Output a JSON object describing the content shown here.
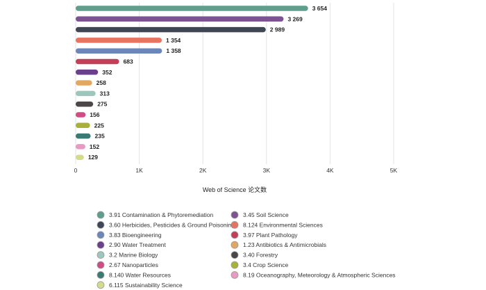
{
  "chart_data": {
    "type": "bar",
    "orientation": "horizontal",
    "xlabel": "Web of Science 论文数",
    "xlim": [
      0,
      5000
    ],
    "x_ticks": [
      0,
      1000,
      2000,
      3000,
      4000,
      5000
    ],
    "x_tick_labels": [
      "0",
      "1K",
      "2K",
      "3K",
      "4K",
      "5K"
    ],
    "grid": "vertical",
    "legend_position": "bottom",
    "categories": [
      "3.91 Contamination & Phytoremediation",
      "3.45 Soil Science",
      "3.60 Herbicides, Pesticides & Ground Poisoning",
      "8.124 Environmental Sciences",
      "3.83 Bioengineering",
      "3.97 Plant Pathology",
      "2.90 Water Treatment",
      "1.23 Antibiotics & Antimicrobials",
      "3.2 Marine Biology",
      "3.40 Forestry",
      "2.67 Nanoparticles",
      "3.4 Crop Science",
      "8.140 Water Resources",
      "8.19 Oceanography, Meteorology & Atmospheric Sciences",
      "6.115 Sustainability Science"
    ],
    "values": [
      3654,
      3269,
      2989,
      1354,
      1358,
      683,
      352,
      258,
      313,
      275,
      156,
      225,
      235,
      152,
      129
    ],
    "value_labels": [
      "3 654",
      "3 269",
      "2 989",
      "1 354",
      "1 358",
      "683",
      "352",
      "258",
      "313",
      "275",
      "156",
      "225",
      "235",
      "152",
      "129"
    ],
    "colors": [
      "#5e9e8c",
      "#7e5394",
      "#414654",
      "#e8735e",
      "#6b86ba",
      "#c33f58",
      "#6a3f8c",
      "#e3a75e",
      "#9dc7bd",
      "#4b4748",
      "#cf4d84",
      "#a8b13a",
      "#3a7a72",
      "#e89ac3",
      "#d3dc8a"
    ],
    "legend_left": [
      "3.91 Contamination & Phytoremediation",
      "3.60 Herbicides, Pesticides & Ground Poisoning",
      "3.83 Bioengineering",
      "2.90 Water Treatment",
      "3.2 Marine Biology",
      "2.67 Nanoparticles",
      "8.140 Water Resources",
      "6.115 Sustainability Science"
    ],
    "legend_right": [
      "3.45 Soil Science",
      "8.124 Environmental Sciences",
      "3.97 Plant Pathology",
      "1.23 Antibiotics & Antimicrobials",
      "3.40 Forestry",
      "3.4 Crop Science",
      "8.19 Oceanography, Meteorology & Atmospheric Sciences"
    ]
  }
}
